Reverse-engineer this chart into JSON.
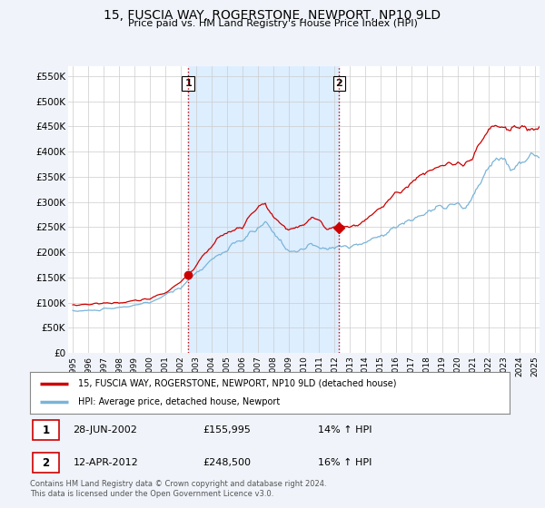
{
  "title": "15, FUSCIA WAY, ROGERSTONE, NEWPORT, NP10 9LD",
  "subtitle": "Price paid vs. HM Land Registry's House Price Index (HPI)",
  "ylabel_ticks": [
    "£0",
    "£50K",
    "£100K",
    "£150K",
    "£200K",
    "£250K",
    "£300K",
    "£350K",
    "£400K",
    "£450K",
    "£500K",
    "£550K"
  ],
  "ytick_values": [
    0,
    50000,
    100000,
    150000,
    200000,
    250000,
    300000,
    350000,
    400000,
    450000,
    500000,
    550000
  ],
  "ylim": [
    0,
    570000
  ],
  "xlim_start": 1994.7,
  "xlim_end": 2025.3,
  "hpi_color": "#7ab4d8",
  "price_color": "#cc0000",
  "shade_color": "#ddeeff",
  "purchase1_date": 2002.49,
  "purchase1_price": 155995,
  "purchase2_date": 2012.28,
  "purchase2_price": 248500,
  "vline_color": "#cc0000",
  "vline_style": ":",
  "legend_label1": "15, FUSCIA WAY, ROGERSTONE, NEWPORT, NP10 9LD (detached house)",
  "legend_label2": "HPI: Average price, detached house, Newport",
  "annotation1_date": "28-JUN-2002",
  "annotation1_price": "£155,995",
  "annotation1_hpi": "14% ↑ HPI",
  "annotation2_date": "12-APR-2012",
  "annotation2_price": "£248,500",
  "annotation2_hpi": "16% ↑ HPI",
  "footnote": "Contains HM Land Registry data © Crown copyright and database right 2024.\nThis data is licensed under the Open Government Licence v3.0.",
  "background_color": "#f0f4fa",
  "plot_bg_color": "#ffffff",
  "grid_color": "#cccccc"
}
